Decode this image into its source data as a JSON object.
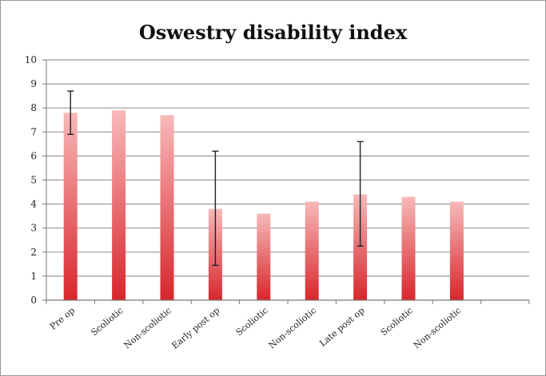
{
  "chart_data": {
    "type": "bar",
    "title": "Oswestry disability index",
    "xlabel": "",
    "ylabel": "",
    "ylim": [
      0,
      10
    ],
    "yticks": [
      "0",
      "1",
      "2",
      "3",
      "4",
      "5",
      "6",
      "7",
      "8",
      "9",
      "10"
    ],
    "grid": true,
    "categories": [
      "Pre op",
      "Scoliotic",
      "Non-scoliotic",
      "Early post op",
      "Scoliotic",
      "Non-scoliotic",
      "Late post op",
      "Scoliotic",
      "Non-scoliotic",
      ""
    ],
    "values": [
      7.8,
      7.9,
      7.7,
      3.8,
      3.6,
      4.1,
      4.4,
      4.3,
      4.1,
      null
    ],
    "error_bars": [
      {
        "index": 0,
        "low": 6.9,
        "high": 8.7
      },
      {
        "index": 3,
        "low": 1.45,
        "high": 6.2
      },
      {
        "index": 6,
        "low": 2.25,
        "high": 6.6
      }
    ],
    "bar_color_top": "#f7b9b9",
    "bar_color_bottom": "#d8262c"
  }
}
